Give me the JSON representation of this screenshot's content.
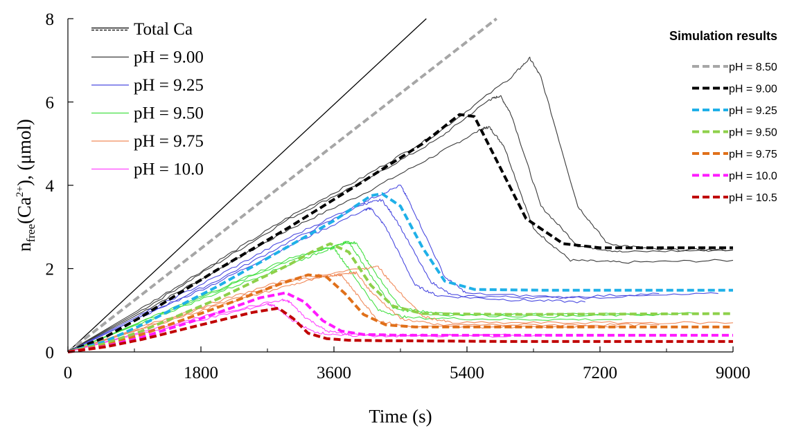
{
  "chart_data": {
    "type": "line",
    "xlabel": "Time (s)",
    "ylabel": {
      "base": "n",
      "sub": "free",
      "paren_open": "(Ca",
      "sup": "2+",
      "rest": "), (μmol)"
    },
    "xlim": [
      0,
      9000
    ],
    "ylim": [
      0,
      8
    ],
    "x_ticks": [
      0,
      1800,
      3600,
      5400,
      7200,
      9000
    ],
    "y_ticks": [
      0,
      2,
      4,
      6,
      8
    ],
    "grid": false,
    "legend_left": {
      "placement": "top-left",
      "entries": [
        {
          "label": "Total Ca",
          "color": "#000000",
          "style": "double"
        },
        {
          "label": "pH = 9.00",
          "color": "#3a3a3a",
          "style": "solid"
        },
        {
          "label": "pH = 9.25",
          "color": "#4a4ae0",
          "style": "solid"
        },
        {
          "label": "pH = 9.50",
          "color": "#44e044",
          "style": "solid"
        },
        {
          "label": "pH = 9.75",
          "color": "#f08a5a",
          "style": "solid"
        },
        {
          "label": "pH = 10.0",
          "color": "#ff44ff",
          "style": "solid"
        }
      ]
    },
    "legend_right": {
      "placement": "top-right",
      "title": "Simulation results",
      "entries": [
        {
          "label": "pH = 8.50",
          "color": "#a6a6a6"
        },
        {
          "label": "pH = 9.00",
          "color": "#000000"
        },
        {
          "label": "pH = 9.25",
          "color": "#1fb0e8"
        },
        {
          "label": "pH = 9.50",
          "color": "#8ed04a"
        },
        {
          "label": "pH = 9.75",
          "color": "#e0701a"
        },
        {
          "label": "pH = 10.0",
          "color": "#ff1aff"
        },
        {
          "label": "pH = 10.5",
          "color": "#c00000"
        }
      ]
    },
    "series_experimental": [
      {
        "name": "Total Ca",
        "color": "#000000",
        "width": 1.3,
        "x": [
          0,
          4850
        ],
        "y": [
          0,
          8
        ]
      },
      {
        "name": "pH = 9.00",
        "color": "#3a3a3a",
        "x": [
          0,
          1000,
          2000,
          3000,
          4000,
          5000,
          5600,
          5700,
          5900,
          6300,
          6800,
          7500,
          9000
        ],
        "y": [
          0,
          0.95,
          1.95,
          2.95,
          3.8,
          4.75,
          5.35,
          5.4,
          4.95,
          2.95,
          2.2,
          2.15,
          2.2
        ]
      },
      {
        "name": "pH = 9.00",
        "color": "#3a3a3a",
        "x": [
          0,
          1000,
          2000,
          3000,
          4000,
          5000,
          5700,
          5850,
          6000,
          6400,
          6900,
          7500,
          9000
        ],
        "y": [
          0,
          1.0,
          2.1,
          3.2,
          4.1,
          5.1,
          6.05,
          6.15,
          5.7,
          3.5,
          2.55,
          2.4,
          2.45
        ]
      },
      {
        "name": "pH = 9.00",
        "color": "#3a3a3a",
        "x": [
          0,
          1000,
          2000,
          3000,
          4000,
          5000,
          6000,
          6250,
          6400,
          6900,
          7300,
          8000,
          9000
        ],
        "y": [
          0,
          1.05,
          2.15,
          3.25,
          4.2,
          5.25,
          6.6,
          7.05,
          6.6,
          3.5,
          2.6,
          2.45,
          2.45
        ]
      },
      {
        "name": "pH = 9.25",
        "color": "#4a4ae0",
        "x": [
          0,
          1000,
          2000,
          3000,
          4000,
          4100,
          4300,
          4700,
          5000,
          6000,
          7000
        ],
        "y": [
          0,
          0.85,
          1.65,
          2.55,
          3.4,
          3.45,
          3.0,
          1.6,
          1.35,
          1.25,
          1.2
        ]
      },
      {
        "name": "pH = 9.25",
        "color": "#4a4ae0",
        "x": [
          0,
          1000,
          2000,
          3000,
          4000,
          4250,
          4450,
          4900,
          5200,
          6500,
          8000
        ],
        "y": [
          0,
          0.85,
          1.7,
          2.65,
          3.55,
          3.65,
          3.15,
          1.7,
          1.35,
          1.3,
          1.4
        ]
      },
      {
        "name": "pH = 9.25",
        "color": "#4a4ae0",
        "x": [
          0,
          1000,
          2000,
          3000,
          4000,
          4500,
          4650,
          5100,
          5400,
          7000,
          8800
        ],
        "y": [
          0,
          0.9,
          1.8,
          2.75,
          3.6,
          4.0,
          3.5,
          1.8,
          1.4,
          1.3,
          1.4
        ]
      },
      {
        "name": "pH = 9.50",
        "color": "#44e044",
        "x": [
          0,
          1000,
          2000,
          3000,
          3500,
          3600,
          3800,
          4200,
          4600,
          6000,
          7500
        ],
        "y": [
          0,
          0.7,
          1.4,
          2.1,
          2.45,
          2.5,
          2.0,
          1.0,
          0.82,
          0.78,
          0.78
        ]
      },
      {
        "name": "pH = 9.50",
        "color": "#44e044",
        "x": [
          0,
          1000,
          2000,
          3000,
          3700,
          3800,
          4000,
          4400,
          4900,
          6500,
          8000
        ],
        "y": [
          0,
          0.72,
          1.45,
          2.2,
          2.6,
          2.65,
          2.1,
          1.05,
          0.9,
          0.85,
          0.9
        ]
      },
      {
        "name": "pH = 9.50",
        "color": "#44e044",
        "x": [
          0,
          1000,
          2000,
          3000,
          3800,
          3900,
          4100,
          4500,
          5000,
          6500,
          8500
        ],
        "y": [
          0,
          0.73,
          1.48,
          2.25,
          2.62,
          2.62,
          2.05,
          1.05,
          0.92,
          0.9,
          0.92
        ]
      },
      {
        "name": "pH = 9.75",
        "color": "#f08a5a",
        "x": [
          0,
          1000,
          2000,
          3000,
          3600,
          3700,
          3900,
          4200,
          4600,
          6000,
          7500
        ],
        "y": [
          0,
          0.55,
          1.1,
          1.6,
          1.85,
          1.85,
          1.4,
          0.75,
          0.6,
          0.6,
          0.62
        ]
      },
      {
        "name": "pH = 9.75",
        "color": "#f08a5a",
        "x": [
          0,
          1000,
          2000,
          3000,
          3800,
          3900,
          4100,
          4500,
          5000,
          6500,
          8000
        ],
        "y": [
          0,
          0.57,
          1.15,
          1.7,
          1.9,
          1.9,
          1.45,
          0.8,
          0.65,
          0.65,
          0.65
        ]
      },
      {
        "name": "pH = 9.75",
        "color": "#f08a5a",
        "x": [
          0,
          1000,
          2000,
          3000,
          4000,
          4200,
          4400,
          4800,
          5200,
          7000,
          9000
        ],
        "y": [
          0,
          0.6,
          1.2,
          1.75,
          2.0,
          2.05,
          1.6,
          0.85,
          0.7,
          0.7,
          0.7
        ]
      },
      {
        "name": "pH = 10.0",
        "color": "#ff44ff",
        "x": [
          0,
          1000,
          2000,
          2700,
          2800,
          3000,
          3300,
          3600,
          4500,
          6000
        ],
        "y": [
          0,
          0.45,
          0.85,
          1.15,
          1.1,
          0.8,
          0.5,
          0.4,
          0.38,
          0.38
        ]
      },
      {
        "name": "pH = 10.0",
        "color": "#ff44ff",
        "x": [
          0,
          1000,
          2000,
          2900,
          3000,
          3200,
          3500,
          3800,
          5000,
          6500
        ],
        "y": [
          0,
          0.48,
          0.92,
          1.25,
          1.2,
          0.85,
          0.5,
          0.42,
          0.4,
          0.4
        ]
      }
    ],
    "series_simulation": [
      {
        "name": "pH = 8.50",
        "color": "#a6a6a6",
        "x": [
          0,
          5800
        ],
        "y": [
          0,
          8
        ]
      },
      {
        "name": "pH = 9.00",
        "color": "#000000",
        "x": [
          0,
          500,
          1000,
          2000,
          3000,
          4000,
          4800,
          5300,
          5500,
          5800,
          6200,
          6700,
          7200,
          9000
        ],
        "y": [
          0,
          0.35,
          0.85,
          1.95,
          3.0,
          4.1,
          5.0,
          5.7,
          5.65,
          4.6,
          3.2,
          2.6,
          2.5,
          2.5
        ]
      },
      {
        "name": "pH = 9.25",
        "color": "#1fb0e8",
        "x": [
          0,
          500,
          1000,
          2000,
          3000,
          3600,
          4100,
          4250,
          4500,
          4800,
          5100,
          5500,
          6500,
          9000
        ],
        "y": [
          0,
          0.25,
          0.65,
          1.55,
          2.55,
          3.15,
          3.75,
          3.8,
          3.5,
          2.5,
          1.7,
          1.5,
          1.48,
          1.48
        ]
      },
      {
        "name": "pH = 9.50",
        "color": "#8ed04a",
        "x": [
          0,
          500,
          1000,
          2000,
          3000,
          3300,
          3550,
          3800,
          4100,
          4400,
          4800,
          6000,
          9000
        ],
        "y": [
          0,
          0.2,
          0.5,
          1.25,
          2.1,
          2.4,
          2.6,
          2.4,
          1.6,
          1.1,
          0.92,
          0.9,
          0.92
        ]
      },
      {
        "name": "pH = 9.75",
        "color": "#e0701a",
        "x": [
          0,
          500,
          1000,
          2000,
          2900,
          3250,
          3500,
          3750,
          4000,
          4300,
          4700,
          6000,
          9000
        ],
        "y": [
          0,
          0.15,
          0.42,
          1.05,
          1.65,
          1.85,
          1.8,
          1.4,
          0.9,
          0.65,
          0.6,
          0.6,
          0.6
        ]
      },
      {
        "name": "pH = 10.0",
        "color": "#ff1aff",
        "x": [
          0,
          500,
          1000,
          1800,
          2600,
          2950,
          3200,
          3450,
          3700,
          4000,
          4500,
          6000,
          9000
        ],
        "y": [
          0,
          0.13,
          0.35,
          0.8,
          1.3,
          1.42,
          1.2,
          0.75,
          0.5,
          0.42,
          0.4,
          0.4,
          0.4
        ]
      },
      {
        "name": "pH = 10.5",
        "color": "#c00000",
        "x": [
          0,
          500,
          1000,
          1800,
          2500,
          2850,
          3050,
          3250,
          3500,
          3800,
          4300,
          6000,
          9000
        ],
        "y": [
          0,
          0.12,
          0.3,
          0.65,
          0.95,
          1.05,
          0.8,
          0.45,
          0.32,
          0.28,
          0.27,
          0.25,
          0.25
        ]
      }
    ]
  }
}
